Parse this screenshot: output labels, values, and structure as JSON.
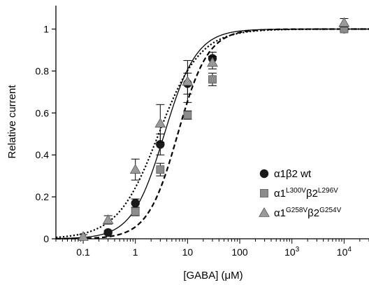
{
  "chart_data": {
    "type": "scatter",
    "xlabel": "[GABA] (μM)",
    "ylabel": "Relative current",
    "x_scale": "log",
    "xlim": [
      0.03,
      30000
    ],
    "ylim": [
      0,
      1.08
    ],
    "x_ticks": [
      {
        "value": 0.1,
        "label": "0.1"
      },
      {
        "value": 1,
        "label": "1"
      },
      {
        "value": 10,
        "label": "10"
      },
      {
        "value": 100,
        "label": "100"
      },
      {
        "value": 1000,
        "label": "10",
        "sup": "3"
      },
      {
        "value": 10000,
        "label": "10",
        "sup": "4"
      }
    ],
    "y_ticks": [
      0,
      0.2,
      0.4,
      0.6,
      0.8,
      1
    ],
    "legend_position": "bottom-right",
    "series": [
      {
        "legend": {
          "prefix": "α1β2 wt"
        },
        "marker": "circle",
        "color": "#1a1a1a",
        "line": "solid",
        "fit": {
          "ec50": 3.6,
          "hill": 1.4
        },
        "points": [
          {
            "x": 0.3,
            "y": 0.03,
            "err": 0.01
          },
          {
            "x": 1,
            "y": 0.17,
            "err": 0.02
          },
          {
            "x": 3,
            "y": 0.45,
            "err": 0.05
          },
          {
            "x": 10,
            "y": 0.74,
            "err": 0.05
          },
          {
            "x": 30,
            "y": 0.86,
            "err": 0.03
          },
          {
            "x": 10000,
            "y": 1.0,
            "err": 0.01
          }
        ]
      },
      {
        "legend": {
          "prefix": "α1",
          "sup1": "L300V",
          "mid": "β2",
          "sup2": "L296V"
        },
        "marker": "square",
        "color": "#8c8c8c",
        "line": "dash",
        "fit": {
          "ec50": 6.5,
          "hill": 1.5
        },
        "points": [
          {
            "x": 1,
            "y": 0.13,
            "err": 0.02
          },
          {
            "x": 3,
            "y": 0.33,
            "err": 0.03
          },
          {
            "x": 10,
            "y": 0.59,
            "err": 0.02
          },
          {
            "x": 30,
            "y": 0.76,
            "err": 0.03
          },
          {
            "x": 10000,
            "y": 1.0,
            "err": 0.01
          }
        ]
      },
      {
        "legend": {
          "prefix": "α1",
          "sup1": "G258V",
          "mid": "β2",
          "sup2": "G254V"
        },
        "marker": "triangle",
        "color": "#9a9a9a",
        "line": "dot",
        "fit": {
          "ec50": 2.8,
          "hill": 1.1
        },
        "points": [
          {
            "x": 0.1,
            "y": 0.01,
            "err": 0.01
          },
          {
            "x": 0.3,
            "y": 0.09,
            "err": 0.02
          },
          {
            "x": 1,
            "y": 0.33,
            "err": 0.05
          },
          {
            "x": 3,
            "y": 0.55,
            "err": 0.09
          },
          {
            "x": 10,
            "y": 0.75,
            "err": 0.1
          },
          {
            "x": 30,
            "y": 0.84,
            "err": 0.03
          },
          {
            "x": 10000,
            "y": 1.03,
            "err": 0.02
          }
        ]
      }
    ]
  }
}
